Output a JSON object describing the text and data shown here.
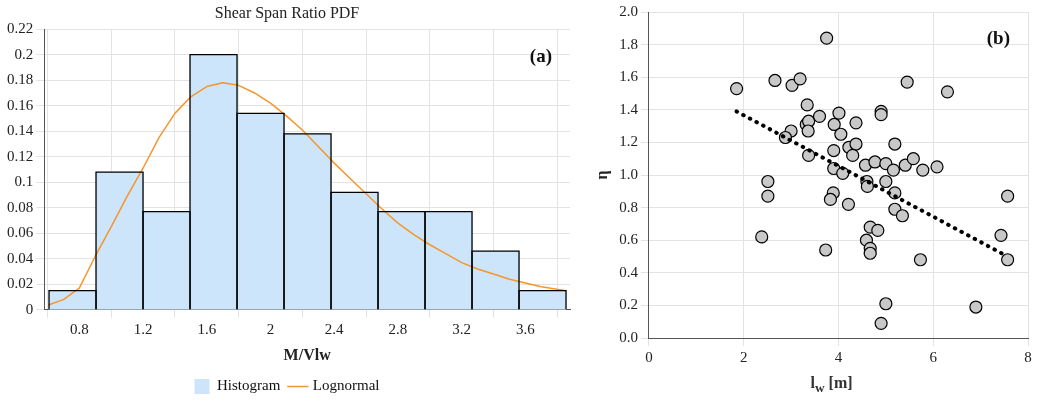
{
  "chart_data": [
    {
      "type": "histogram",
      "title": "Shear Span Ratio PDF",
      "xlabel": "M/Vlw",
      "annotations": [
        "(a)"
      ],
      "bins": [
        0.61,
        0.905,
        1.2,
        1.495,
        1.79,
        2.085,
        2.38,
        2.675,
        2.97,
        3.265,
        3.56,
        3.855
      ],
      "series": [
        {
          "name": "Histogram",
          "color": "#cce5fb",
          "values": [
            0.015,
            0.108,
            0.077,
            0.2,
            0.154,
            0.138,
            0.092,
            0.077,
            0.077,
            0.046,
            0.015
          ]
        },
        {
          "name": "Lognormal",
          "type": "line",
          "color": "#f5962a",
          "x": [
            0.61,
            0.7,
            0.8,
            0.9,
            1.0,
            1.1,
            1.2,
            1.3,
            1.4,
            1.5,
            1.6,
            1.7,
            1.8,
            1.9,
            2.0,
            2.1,
            2.2,
            2.3,
            2.4,
            2.5,
            2.6,
            2.7,
            2.8,
            2.9,
            3.0,
            3.1,
            3.2,
            3.3,
            3.4,
            3.5,
            3.6,
            3.7,
            3.855
          ],
          "values": [
            0.004,
            0.008,
            0.017,
            0.042,
            0.065,
            0.089,
            0.111,
            0.135,
            0.154,
            0.167,
            0.175,
            0.178,
            0.176,
            0.17,
            0.162,
            0.152,
            0.141,
            0.128,
            0.115,
            0.103,
            0.091,
            0.079,
            0.068,
            0.059,
            0.051,
            0.044,
            0.037,
            0.032,
            0.028,
            0.024,
            0.021,
            0.018,
            0.015
          ]
        }
      ],
      "xlim": [
        0.58,
        3.88
      ],
      "xticks": [
        0.8,
        1.2,
        1.6,
        2,
        2.4,
        2.8,
        3.2,
        3.6
      ],
      "ylim": [
        0,
        0.22
      ],
      "yticks": [
        0,
        0.02,
        0.04,
        0.06,
        0.08,
        0.1,
        0.12,
        0.14,
        0.16,
        0.18,
        0.2,
        0.22
      ],
      "grid": true,
      "legend": "bottom"
    },
    {
      "type": "scatter",
      "xlabel": "l$_{w}$ [m]",
      "ylabel": "η",
      "annotations": [
        "(b)"
      ],
      "series": [
        {
          "color": "#c8c8c8",
          "marker": "circle",
          "x": [
            1.85,
            2.66,
            3.02,
            3.19,
            3.75,
            3.34,
            3.32,
            3.37,
            3.36,
            3.6,
            3.0,
            2.88,
            3.37,
            3.91,
            4.01,
            4.05,
            4.37,
            3.9,
            4.22,
            4.37,
            4.3,
            3.9,
            4.09,
            4.57,
            4.77,
            5.0,
            4.9,
            4.9,
            5.16,
            5.19,
            5.41,
            5.58,
            5.78,
            6.08,
            5.45,
            6.3,
            4.6,
            4.61,
            5.0,
            2.51,
            3.89,
            2.51,
            2.38,
            3.83,
            4.21,
            5.19,
            5.19,
            5.35,
            4.67,
            4.83,
            4.59,
            4.67,
            4.67,
            3.73,
            5.73,
            7.43,
            7.57,
            7.57,
            5.0,
            4.9,
            6.9
          ],
          "values": [
            1.53,
            1.58,
            1.55,
            1.59,
            1.84,
            1.43,
            1.31,
            1.33,
            1.27,
            1.36,
            1.27,
            1.23,
            1.12,
            1.31,
            1.38,
            1.25,
            1.32,
            1.15,
            1.17,
            1.19,
            1.12,
            1.04,
            1.01,
            1.06,
            1.08,
            1.07,
            1.39,
            1.37,
            1.03,
            1.19,
            1.06,
            1.1,
            1.03,
            1.05,
            1.57,
            1.51,
            0.96,
            0.93,
            0.96,
            0.96,
            0.89,
            0.87,
            0.62,
            0.85,
            0.82,
            0.89,
            0.79,
            0.75,
            0.68,
            0.66,
            0.6,
            0.55,
            0.52,
            0.54,
            0.48,
            0.63,
            0.87,
            0.48,
            0.21,
            0.09,
            0.19
          ]
        },
        {
          "type": "line",
          "color": "#000000",
          "line_style": "dotted",
          "marker": "none",
          "x": [
            1.85,
            7.57
          ],
          "values": [
            1.39,
            0.5
          ]
        }
      ],
      "xlim": [
        0,
        8
      ],
      "xticks": [
        0,
        2,
        4,
        6,
        8
      ],
      "ylim": [
        0,
        2
      ],
      "yticks": [
        {
          "value": 0,
          "label": "0.0"
        },
        {
          "value": 0.2,
          "label": "0.2"
        },
        {
          "value": 0.4,
          "label": "0.4"
        },
        {
          "value": 0.6,
          "label": "0.6"
        },
        {
          "value": 0.8,
          "label": "0.8"
        },
        {
          "value": 1,
          "label": "1.0"
        },
        {
          "value": 1.2,
          "label": "1.2"
        },
        {
          "value": 1.4,
          "label": "1.4"
        },
        {
          "value": 1.6,
          "label": "1.6"
        },
        {
          "value": 1.8,
          "label": "1.8"
        },
        {
          "value": 2,
          "label": "2.0"
        }
      ],
      "grid": true
    }
  ]
}
